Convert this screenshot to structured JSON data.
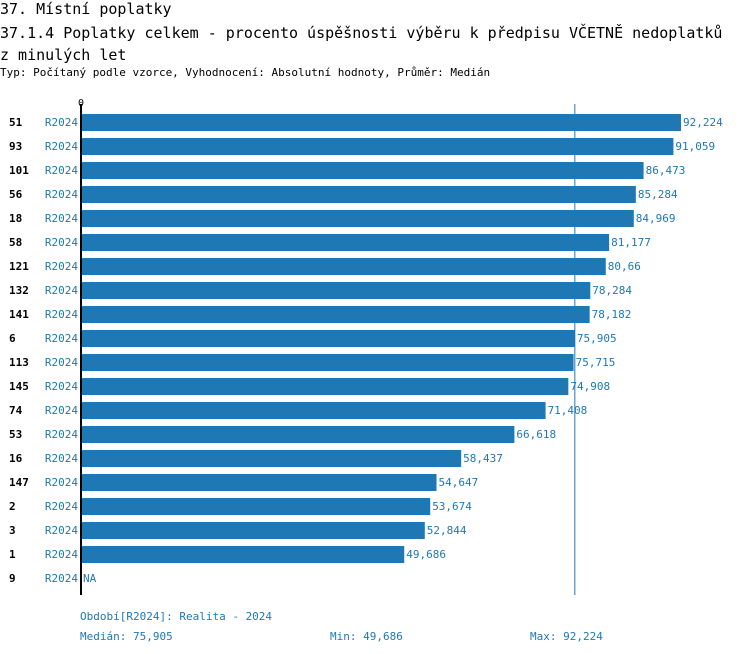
{
  "header": {
    "title": "37. Místní poplatky",
    "subtitle": "37.1.4 Poplatky celkem - procento úspěšnosti výběru k předpisu VČETNĚ nedoplatků z minulých let",
    "info": "Typ: Počítaný podle vzorce, Vyhodnocení: Absolutní hodnoty, Průměr: Medián"
  },
  "chart_data": {
    "type": "bar",
    "orientation": "horizontal",
    "axis_zero_label": "0",
    "xlim": [
      0,
      92.224
    ],
    "bar_color": "#1f77b4",
    "median_line": 75.905,
    "rows": [
      {
        "id": "51",
        "period": "R2024",
        "value": 92.224,
        "label": "92,224"
      },
      {
        "id": "93",
        "period": "R2024",
        "value": 91.059,
        "label": "91,059"
      },
      {
        "id": "101",
        "period": "R2024",
        "value": 86.473,
        "label": "86,473"
      },
      {
        "id": "56",
        "period": "R2024",
        "value": 85.284,
        "label": "85,284"
      },
      {
        "id": "18",
        "period": "R2024",
        "value": 84.969,
        "label": "84,969"
      },
      {
        "id": "58",
        "period": "R2024",
        "value": 81.177,
        "label": "81,177"
      },
      {
        "id": "121",
        "period": "R2024",
        "value": 80.66,
        "label": "80,66"
      },
      {
        "id": "132",
        "period": "R2024",
        "value": 78.284,
        "label": "78,284"
      },
      {
        "id": "141",
        "period": "R2024",
        "value": 78.182,
        "label": "78,182"
      },
      {
        "id": "6",
        "period": "R2024",
        "value": 75.905,
        "label": "75,905"
      },
      {
        "id": "113",
        "period": "R2024",
        "value": 75.715,
        "label": "75,715"
      },
      {
        "id": "145",
        "period": "R2024",
        "value": 74.908,
        "label": "74,908"
      },
      {
        "id": "74",
        "period": "R2024",
        "value": 71.408,
        "label": "71,408"
      },
      {
        "id": "53",
        "period": "R2024",
        "value": 66.618,
        "label": "66,618"
      },
      {
        "id": "16",
        "period": "R2024",
        "value": 58.437,
        "label": "58,437"
      },
      {
        "id": "147",
        "period": "R2024",
        "value": 54.647,
        "label": "54,647"
      },
      {
        "id": "2",
        "period": "R2024",
        "value": 53.674,
        "label": "53,674"
      },
      {
        "id": "3",
        "period": "R2024",
        "value": 52.844,
        "label": "52,844"
      },
      {
        "id": "1",
        "period": "R2024",
        "value": 49.686,
        "label": "49,686"
      },
      {
        "id": "9",
        "period": "R2024",
        "value": null,
        "label": "NA"
      }
    ]
  },
  "footer": {
    "period": "Období[R2024]: Realita - 2024",
    "median": "Medián: 75,905",
    "min": "Min: 49,686",
    "max": "Max: 92,224"
  }
}
